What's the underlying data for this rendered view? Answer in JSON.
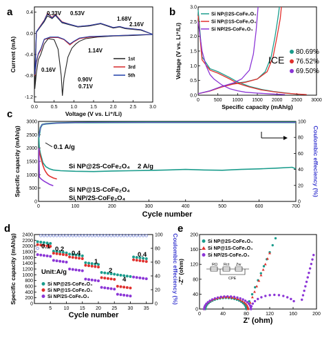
{
  "chart_data": [
    {
      "panel": "a",
      "type": "line",
      "xlabel": "Voltage (V vs. Li⁺/Li)",
      "ylabel": "Current (mA)",
      "xlim": [
        0.0,
        3.0
      ],
      "ylim": [
        -1.3,
        0.5
      ],
      "xticks": [
        "0.0",
        "0.5",
        "1.0",
        "1.5",
        "2.0",
        "2.5",
        "3.0"
      ],
      "yticks": [
        "0.4",
        "0.0",
        "-0.4",
        "-0.8",
        "-1.2"
      ],
      "series": [
        {
          "name": "1st",
          "color": "#222222",
          "x": [
            0.01,
            0.05,
            0.1,
            0.16,
            0.25,
            0.35,
            0.5,
            0.6,
            0.68,
            0.71,
            0.75,
            0.85,
            0.95,
            1.05,
            1.14,
            1.3,
            1.6,
            2.0,
            2.5,
            3.0,
            2.7,
            2.3,
            2.16,
            2.0,
            1.68,
            1.4,
            1.1,
            0.9,
            0.7,
            0.53,
            0.45,
            0.33,
            0.25,
            0.15,
            0.05,
            0.01
          ],
          "y": [
            -1.05,
            -0.75,
            -0.5,
            -0.4,
            -0.2,
            -0.1,
            -0.12,
            -0.3,
            -0.8,
            -1.18,
            -0.85,
            -0.45,
            -0.28,
            -0.2,
            -0.15,
            -0.1,
            -0.07,
            -0.05,
            -0.04,
            -0.02,
            0.06,
            0.09,
            0.12,
            0.1,
            0.18,
            0.14,
            0.12,
            0.16,
            0.2,
            0.34,
            0.28,
            0.33,
            0.22,
            0.12,
            0.02,
            -1.05
          ]
        },
        {
          "name": "3rd",
          "color": "#d62728",
          "x": [
            0.01,
            0.05,
            0.1,
            0.16,
            0.25,
            0.4,
            0.6,
            0.75,
            0.9,
            1.0,
            1.14,
            1.4,
            1.8,
            2.2,
            2.6,
            3.0,
            2.7,
            2.3,
            2.16,
            2.0,
            1.68,
            1.4,
            1.1,
            0.9,
            0.7,
            0.53,
            0.45,
            0.33,
            0.25,
            0.15,
            0.05,
            0.01
          ],
          "y": [
            -0.8,
            -0.55,
            -0.4,
            -0.32,
            -0.12,
            -0.08,
            -0.08,
            -0.12,
            -0.22,
            -0.16,
            -0.1,
            -0.07,
            -0.05,
            -0.04,
            -0.03,
            -0.02,
            0.07,
            0.1,
            0.13,
            0.11,
            0.19,
            0.15,
            0.13,
            0.17,
            0.22,
            0.36,
            0.3,
            0.38,
            0.25,
            0.14,
            0.03,
            -0.8
          ]
        },
        {
          "name": "5th",
          "color": "#1f3fa8",
          "x": [
            0.01,
            0.05,
            0.1,
            0.16,
            0.25,
            0.4,
            0.6,
            0.75,
            0.9,
            1.0,
            1.14,
            1.4,
            1.8,
            2.2,
            2.6,
            3.0,
            2.7,
            2.3,
            2.16,
            2.0,
            1.68,
            1.4,
            1.1,
            0.9,
            0.7,
            0.53,
            0.45,
            0.33,
            0.25,
            0.15,
            0.05,
            0.01
          ],
          "y": [
            -0.78,
            -0.53,
            -0.38,
            -0.3,
            -0.11,
            -0.07,
            -0.07,
            -0.11,
            -0.2,
            -0.15,
            -0.09,
            -0.06,
            -0.05,
            -0.04,
            -0.03,
            -0.02,
            0.07,
            0.1,
            0.13,
            0.11,
            0.19,
            0.15,
            0.13,
            0.17,
            0.21,
            0.35,
            0.29,
            0.37,
            0.24,
            0.13,
            0.03,
            -0.78
          ]
        }
      ],
      "annotations": [
        "0.33V",
        "0.53V",
        "1.68V",
        "2.16V",
        "0.16V",
        "0.90V",
        "1.14V",
        "0.71V"
      ]
    },
    {
      "panel": "b",
      "type": "line",
      "xlabel": "Specific capacity (mAh/g)",
      "ylabel": "Voltage (V vs. Li⁺/Li)",
      "xlim": [
        0,
        3000
      ],
      "ylim": [
        0.0,
        3.0
      ],
      "xticks": [
        "0",
        "500",
        "1000",
        "1500",
        "2000",
        "2500",
        "3000"
      ],
      "yticks": [
        "0.0",
        "0.5",
        "1.0",
        "1.5",
        "2.0",
        "2.5",
        "3.0"
      ],
      "series": [
        {
          "name": "Si NP@2S-CoFe₂O₄",
          "color": "#1a9c8c",
          "discharge": {
            "x": [
              0,
              100,
              300,
              500,
              800,
              1000,
              1300,
              1600,
              1900,
              2200,
              2400,
              2550
            ],
            "y": [
              2.9,
              1.3,
              0.9,
              0.8,
              0.6,
              0.45,
              0.3,
              0.2,
              0.13,
              0.08,
              0.05,
              0.02
            ]
          },
          "charge": {
            "x": [
              0,
              300,
              600,
              900,
              1200,
              1500,
              1700,
              1850,
              1950,
              2020,
              2060
            ],
            "y": [
              0.05,
              0.15,
              0.3,
              0.4,
              0.45,
              0.55,
              0.8,
              1.3,
              2.0,
              2.6,
              3.0
            ]
          }
        },
        {
          "name": "Si NP@1S-CoFe₂O₄",
          "color": "#e0302d",
          "discharge": {
            "x": [
              0,
              100,
              300,
              500,
              800,
              1000,
              1300,
              1600,
              1900,
              2200,
              2500,
              2750
            ],
            "y": [
              2.7,
              1.2,
              0.85,
              0.75,
              0.55,
              0.4,
              0.28,
              0.18,
              0.12,
              0.07,
              0.04,
              0.02
            ]
          },
          "charge": {
            "x": [
              0,
              300,
              600,
              900,
              1200,
              1500,
              1750,
              1900,
              2000,
              2080,
              2110
            ],
            "y": [
              0.05,
              0.14,
              0.28,
              0.38,
              0.44,
              0.55,
              0.8,
              1.3,
              2.0,
              2.6,
              3.0
            ]
          }
        },
        {
          "name": "Si NP/2S-CoFe₂O₄",
          "color": "#8b35d6",
          "discharge": {
            "x": [
              0,
              100,
              200,
              300,
              400,
              600,
              800,
              1000,
              1200,
              1500,
              1900,
              2200
            ],
            "y": [
              2.5,
              1.5,
              1.0,
              0.7,
              0.55,
              0.35,
              0.22,
              0.15,
              0.1,
              0.07,
              0.04,
              0.02
            ]
          },
          "charge": {
            "x": [
              0,
              300,
              600,
              900,
              1100,
              1300,
              1400,
              1470,
              1520
            ],
            "y": [
              0.05,
              0.15,
              0.3,
              0.42,
              0.55,
              0.85,
              1.4,
              2.2,
              3.0
            ]
          }
        }
      ],
      "ice_label": "ICE",
      "ice_values": [
        "80.69%",
        "76.52%",
        "69.50%"
      ]
    },
    {
      "panel": "c",
      "type": "line",
      "xlabel": "Cycle number",
      "ylabel": "Specific capacity (mAh/g)",
      "ylabel_right": "Coulombic effeciency (%)",
      "xlim": [
        0,
        700
      ],
      "ylim": [
        0,
        3000
      ],
      "ylim_right": [
        0,
        100
      ],
      "xticks": [
        "0",
        "100",
        "200",
        "300",
        "400",
        "500",
        "600",
        "700"
      ],
      "yticks": [
        "0",
        "500",
        "1000",
        "1500",
        "2000",
        "2500",
        "3000"
      ],
      "yticks_right": [
        "0",
        "20",
        "40",
        "60",
        "80",
        "100"
      ],
      "series": [
        {
          "name": "Si NP@2S-CoFe₂O₄",
          "color": "#1a9c8c",
          "x": [
            1,
            2,
            3,
            5,
            8,
            12,
            20,
            30,
            40,
            60,
            100,
            150,
            200,
            250,
            300,
            350,
            400,
            450,
            500,
            550,
            600,
            650,
            690,
            700
          ],
          "y": [
            2400,
            2000,
            1950,
            1800,
            1650,
            1450,
            1300,
            1220,
            1180,
            1150,
            1130,
            1120,
            1140,
            1150,
            1160,
            1180,
            1200,
            1180,
            1170,
            1200,
            1220,
            1250,
            1280,
            1220
          ]
        },
        {
          "name": "Si NP@1S-CoFe₂O₄",
          "color": "#e0302d",
          "x": [
            1,
            2,
            3,
            5,
            8,
            12,
            16,
            20,
            25,
            30,
            40,
            50
          ],
          "y": [
            2000,
            1900,
            1820,
            1700,
            1550,
            1350,
            1200,
            1100,
            1000,
            950,
            880,
            840
          ]
        },
        {
          "name": "Si NP/2S-CoFe₂O₄",
          "color": "#8b35d6",
          "x": [
            1,
            2,
            3,
            5,
            8,
            12,
            16,
            20,
            25,
            30,
            40
          ],
          "y": [
            2000,
            950,
            900,
            870,
            830,
            790,
            750,
            720,
            680,
            640,
            590
          ]
        }
      ],
      "coulombic_efficiency": {
        "color": "#8b35d6",
        "x": [
          1,
          5,
          10,
          20,
          50,
          100,
          200,
          300,
          400,
          500,
          600,
          700
        ],
        "y": [
          80,
          92,
          96,
          97,
          98,
          98.5,
          98.7,
          98.8,
          98.8,
          98.8,
          98.8,
          98.8
        ]
      },
      "annotations": [
        "0.1 A/g",
        "Si NP@2S-CoFe₂O₄",
        "2 A/g",
        "Si NP@1S-CoFe₂O₄",
        "Si NP/2S-CoFe₂O₄"
      ]
    },
    {
      "panel": "d",
      "type": "scatter",
      "xlabel": "Cycle number",
      "ylabel": "Specific capacity (mAh/g)",
      "ylabel_right": "Coulombic effeciency (%)",
      "xlim": [
        0,
        37
      ],
      "ylim": [
        0,
        2400
      ],
      "ylim_right": [
        0,
        100
      ],
      "xticks": [
        "5",
        "10",
        "15",
        "20",
        "25",
        "30",
        "35"
      ],
      "yticks": [
        "0",
        "200",
        "400",
        "600",
        "800",
        "1000",
        "1200",
        "1400",
        "1600",
        "1800",
        "2000",
        "2200",
        "2400"
      ],
      "yticks_right": [
        "0",
        "20",
        "40",
        "60",
        "80",
        "100"
      ],
      "rate_labels": [
        "0.1",
        "0.2",
        "0.4",
        "1",
        "2",
        "4",
        "0.4"
      ],
      "unit_label": "Unit:A/g",
      "series": [
        {
          "name": "Si NP@2S-CoFe₂O₄",
          "color": "#1a9c8c",
          "values_by_step": [
            2150,
            1820,
            1720,
            1420,
            1080,
            1000,
            1620
          ]
        },
        {
          "name": "Si NP@1S-CoFe₂O₄",
          "color": "#e0302d",
          "values_by_step": [
            2050,
            1750,
            1620,
            1330,
            900,
            600,
            1520
          ]
        },
        {
          "name": "Si NP/2S-CoFe₂O₄",
          "color": "#8b35d6",
          "values_by_step": [
            1700,
            1500,
            1200,
            850,
            560,
            320,
            920
          ]
        }
      ]
    },
    {
      "panel": "e",
      "type": "scatter",
      "xlabel": "Z' (ohm)",
      "ylabel": "-Z'' (ohm)",
      "xlim": [
        0,
        200
      ],
      "ylim": [
        0,
        200
      ],
      "xticks": [
        "0",
        "40",
        "80",
        "120",
        "160",
        "200"
      ],
      "yticks": [
        "0",
        "40",
        "80",
        "120",
        "160",
        "200"
      ],
      "series": [
        {
          "name": "Si NP@2S-CoFe₂O₄",
          "color": "#1a9c8c",
          "marker": "circle"
        },
        {
          "name": "Si NP@1S-CoFe₂O₄",
          "color": "#e0302d",
          "marker": "triangle"
        },
        {
          "name": "Si NP/2S-CoFe₂O₄",
          "color": "#8b35d6",
          "marker": "circle"
        }
      ],
      "circuit_labels": [
        "RΩ",
        "Rct",
        "Zw",
        "CPE"
      ]
    }
  ]
}
